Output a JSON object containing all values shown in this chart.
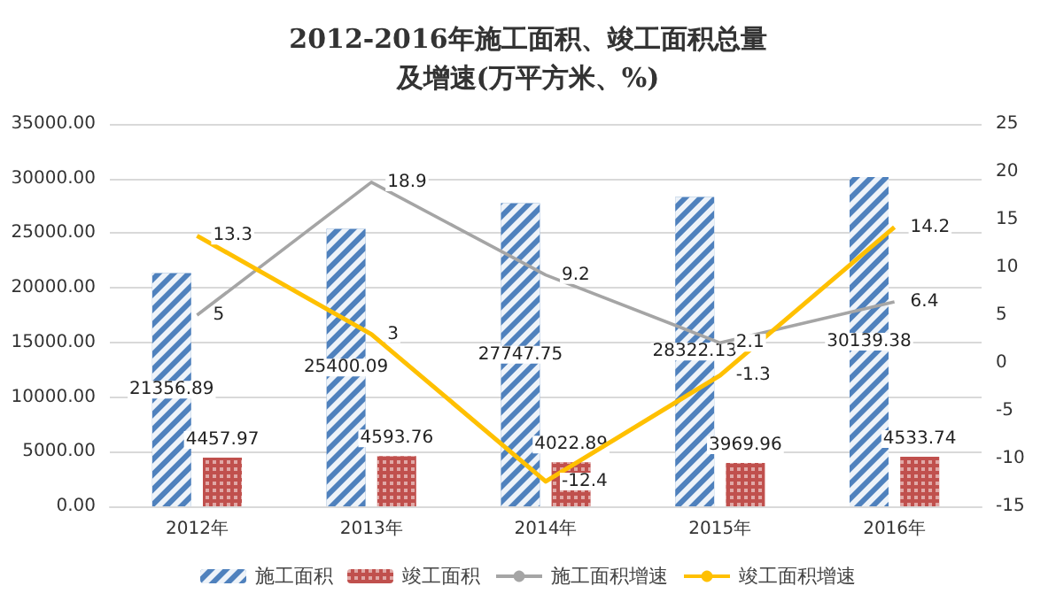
{
  "chart_data": {
    "type": "bar",
    "title": "2012-2016年施工面积、竣工面积总量及增速(万平方米、%)",
    "categories": [
      "2012年",
      "2013年",
      "2014年",
      "2015年",
      "2016年"
    ],
    "series": [
      {
        "name": "施工面积",
        "color": "#4f81bd",
        "values": [
          21356.89,
          25400.09,
          27747.75,
          28322.13,
          30139.38
        ]
      },
      {
        "name": "竣工面积",
        "color": "#c0504d",
        "values": [
          4457.97,
          4593.76,
          4022.89,
          3969.96,
          4533.74
        ]
      },
      {
        "name": "施工面积增速",
        "type": "line",
        "axis": "y2",
        "color": "#a5a5a5",
        "values": [
          5,
          18.9,
          9.2,
          2.1,
          6.4
        ]
      },
      {
        "name": "竣工面积增速",
        "type": "line",
        "axis": "y2",
        "color": "#ffc000",
        "values": [
          13.3,
          3,
          -12.4,
          -1.3,
          14.2
        ]
      }
    ],
    "ylim": [
      0,
      35000
    ],
    "yticks": [
      {
        "value": 0,
        "label": "0.00"
      },
      {
        "value": 5000,
        "label": "5000.00"
      },
      {
        "value": 10000,
        "label": "10000.00"
      },
      {
        "value": 15000,
        "label": "15000.00"
      },
      {
        "value": 20000,
        "label": "20000.00"
      },
      {
        "value": 25000,
        "label": "25000.00"
      },
      {
        "value": 30000,
        "label": "30000.00"
      },
      {
        "value": 35000,
        "label": "35000.00"
      }
    ],
    "y2lim": [
      -15,
      25
    ],
    "y2ticks": [
      -15,
      -10,
      -5,
      0,
      5,
      10,
      15,
      20,
      25
    ],
    "data_labels": true,
    "grid": "y",
    "legend": "bottom",
    "marker": "none"
  }
}
